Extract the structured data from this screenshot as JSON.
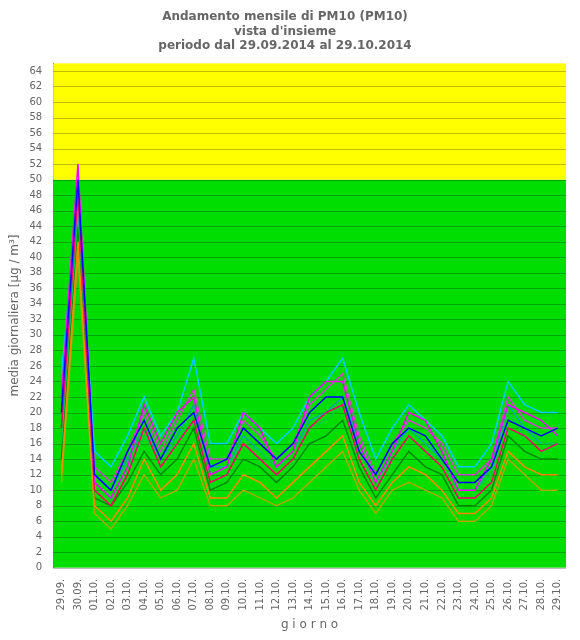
{
  "chart_data": {
    "type": "line",
    "title": "Andamento mensile di PM10 (PM10)\nvista d'insieme\nperiodo dal 29.09.2014 al 29.10.2014",
    "x_label": "g i o r n o",
    "y_label": "media giornaliera [μg / m³]",
    "categories": [
      "29.09.",
      "30.09.",
      "01.10.",
      "02.10.",
      "03.10.",
      "04.10.",
      "05.10.",
      "06.10.",
      "07.10.",
      "08.10.",
      "09.10.",
      "10.10.",
      "11.10.",
      "12.10.",
      "13.10.",
      "14.10.",
      "15.10.",
      "16.10.",
      "17.10.",
      "18.10.",
      "19.10.",
      "20.10.",
      "21.10.",
      "22.10.",
      "23.10.",
      "24.10.",
      "25.10.",
      "26.10.",
      "27.10.",
      "28.10.",
      "29.10."
    ],
    "series": [
      {
        "color": "#0000ff",
        "values": [
          20,
          50,
          12,
          10,
          15,
          19,
          14,
          18,
          20,
          13,
          14,
          18,
          16,
          14,
          16,
          20,
          22,
          22,
          15,
          12,
          16,
          18,
          17,
          14,
          11,
          11,
          13,
          19,
          18,
          17,
          18
        ]
      },
      {
        "color": "#ff00ff",
        "values": [
          22,
          52,
          11,
          9,
          13,
          21,
          16,
          20,
          22,
          12,
          13,
          20,
          18,
          13,
          15,
          22,
          24,
          24,
          16,
          11,
          15,
          20,
          19,
          15,
          10,
          10,
          14,
          21,
          20,
          19,
          17
        ]
      },
      {
        "color": "#ff0066",
        "values": [
          18,
          48,
          10,
          8,
          12,
          18,
          13,
          16,
          19,
          11,
          12,
          16,
          14,
          12,
          14,
          18,
          20,
          21,
          14,
          10,
          14,
          17,
          15,
          13,
          9,
          9,
          11,
          18,
          17,
          15,
          16
        ]
      },
      {
        "color": "#ff8800",
        "values": [
          12,
          42,
          8,
          6,
          9,
          14,
          10,
          12,
          16,
          9,
          9,
          12,
          11,
          9,
          11,
          13,
          15,
          17,
          11,
          8,
          11,
          13,
          12,
          10,
          7,
          7,
          9,
          15,
          13,
          12,
          12
        ]
      },
      {
        "color": "#00ccff",
        "values": [
          25,
          47,
          15,
          13,
          17,
          22,
          17,
          20,
          27,
          16,
          16,
          20,
          18,
          16,
          18,
          22,
          24,
          27,
          20,
          14,
          18,
          21,
          19,
          17,
          13,
          13,
          16,
          24,
          21,
          20,
          20
        ]
      },
      {
        "color": "#00cc44",
        "values": [
          16,
          46,
          11,
          9,
          13,
          17,
          14,
          16,
          20,
          12,
          13,
          16,
          15,
          13,
          15,
          18,
          19,
          21,
          15,
          11,
          14,
          17,
          15,
          14,
          10,
          10,
          12,
          20,
          17,
          16,
          16
        ]
      },
      {
        "color": "#008800",
        "values": [
          14,
          44,
          9,
          8,
          11,
          15,
          12,
          14,
          18,
          10,
          11,
          14,
          13,
          11,
          13,
          16,
          17,
          19,
          13,
          9,
          12,
          15,
          13,
          12,
          8,
          8,
          10,
          17,
          15,
          14,
          14
        ]
      },
      {
        "color": "#00aaaa",
        "values": [
          17,
          45,
          12,
          10,
          14,
          18,
          14,
          17,
          21,
          13,
          13,
          17,
          15,
          13,
          15,
          19,
          20,
          22,
          16,
          11,
          15,
          18,
          16,
          14,
          10,
          10,
          13,
          21,
          18,
          16,
          16
        ]
      },
      {
        "color": "#cc44cc",
        "values": [
          21,
          49,
          13,
          11,
          15,
          20,
          15,
          19,
          23,
          14,
          14,
          19,
          17,
          14,
          16,
          21,
          23,
          25,
          17,
          12,
          16,
          19,
          18,
          16,
          12,
          12,
          14,
          22,
          19,
          18,
          18
        ]
      },
      {
        "color": "#aaaa00",
        "values": [
          11,
          40,
          7,
          5,
          8,
          12,
          9,
          10,
          14,
          8,
          8,
          10,
          9,
          8,
          9,
          11,
          13,
          15,
          10,
          7,
          10,
          11,
          10,
          9,
          6,
          6,
          8,
          14,
          12,
          10,
          10
        ]
      }
    ],
    "bands": [
      {
        "from": 0,
        "to": 50,
        "color": "#00dd00"
      },
      {
        "from": 50,
        "to": 65,
        "color": "#ffff00"
      }
    ],
    "ylim": [
      0,
      65
    ],
    "yticks": [
      0,
      2,
      4,
      6,
      8,
      10,
      12,
      14,
      16,
      18,
      20,
      22,
      24,
      26,
      28,
      30,
      32,
      34,
      36,
      38,
      40,
      42,
      44,
      46,
      48,
      50,
      52,
      54,
      56,
      58,
      60,
      62,
      64
    ],
    "grid": true
  }
}
